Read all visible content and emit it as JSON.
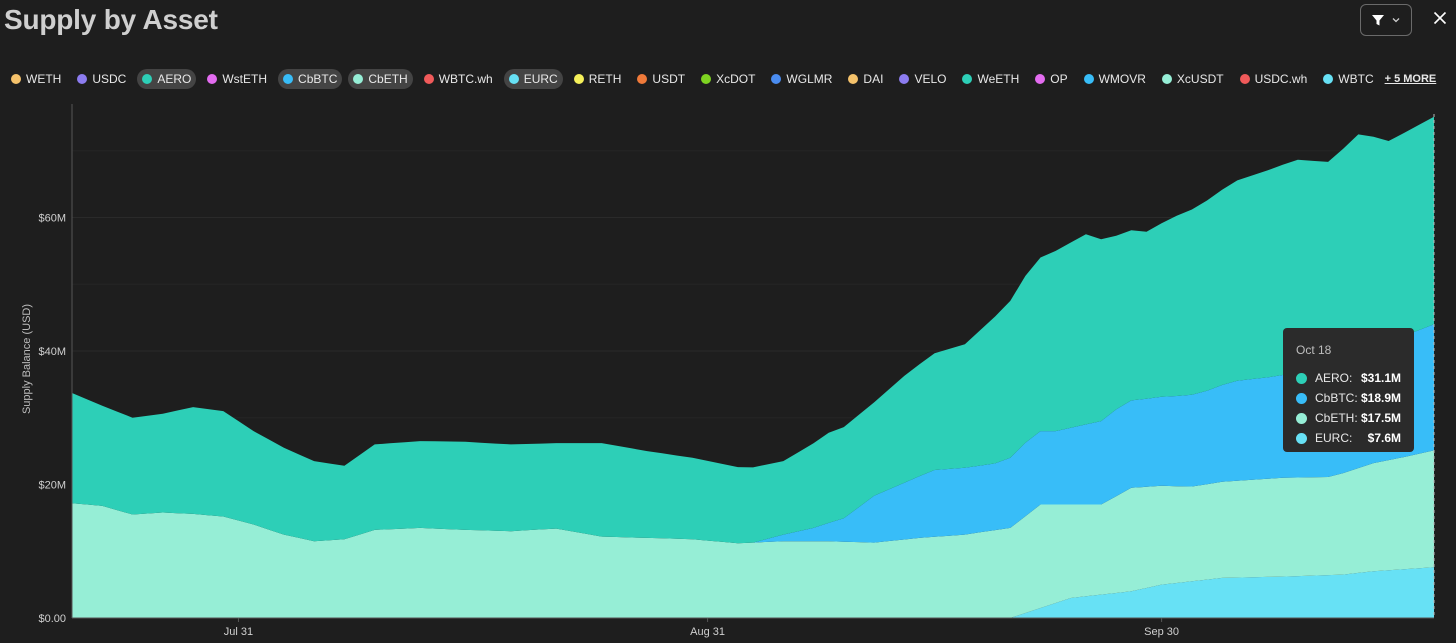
{
  "header": {
    "title": "Supply by Asset",
    "filter_icon": "filter-icon",
    "chevron_icon": "chevron-down-icon",
    "close_icon": "close-icon"
  },
  "legend": {
    "items": [
      {
        "label": "WETH",
        "color": "#f5c26b",
        "active": false
      },
      {
        "label": "USDC",
        "color": "#8c7cf0",
        "active": false
      },
      {
        "label": "AERO",
        "color": "#2dcfb7",
        "active": true
      },
      {
        "label": "WstETH",
        "color": "#e36cf0",
        "active": false
      },
      {
        "label": "CbBTC",
        "color": "#38bdf8",
        "active": true
      },
      {
        "label": "CbETH",
        "color": "#96eed6",
        "active": true
      },
      {
        "label": "WBTC.wh",
        "color": "#f05a5a",
        "active": false
      },
      {
        "label": "EURC",
        "color": "#67e1f5",
        "active": true
      },
      {
        "label": "RETH",
        "color": "#f5f05a",
        "active": false
      },
      {
        "label": "USDT",
        "color": "#f07a3a",
        "active": false
      },
      {
        "label": "XcDOT",
        "color": "#7ed321",
        "active": false
      },
      {
        "label": "WGLMR",
        "color": "#4a8cf0",
        "active": false
      },
      {
        "label": "DAI",
        "color": "#f5c26b",
        "active": false
      },
      {
        "label": "VELO",
        "color": "#8c7cf0",
        "active": false
      },
      {
        "label": "WeETH",
        "color": "#2dcfb7",
        "active": false
      },
      {
        "label": "OP",
        "color": "#e36cf0",
        "active": false
      },
      {
        "label": "WMOVR",
        "color": "#38bdf8",
        "active": false
      },
      {
        "label": "XcUSDT",
        "color": "#96eed6",
        "active": false
      },
      {
        "label": "USDC.wh",
        "color": "#f05a5a",
        "active": false
      },
      {
        "label": "WBTC",
        "color": "#67e1f5",
        "active": false
      }
    ],
    "more_label": "+ 5 MORE"
  },
  "tooltip": {
    "date": "Oct 18",
    "rows": [
      {
        "label": "AERO:",
        "value": "$31.1M",
        "color": "#2dcfb7"
      },
      {
        "label": "CbBTC:",
        "value": "$18.9M",
        "color": "#38bdf8"
      },
      {
        "label": "CbETH:",
        "value": "$17.5M",
        "color": "#96eed6"
      },
      {
        "label": "EURC:",
        "value": "$7.6M",
        "color": "#67e1f5"
      }
    ]
  },
  "chart_data": {
    "type": "area",
    "stacked": true,
    "title": "Supply by Asset",
    "ylabel": "Supply Balance (USD)",
    "xlabel": "",
    "ylim": [
      0,
      77
    ],
    "y_ticks": [
      {
        "value": 0,
        "label": "$0.00"
      },
      {
        "value": 20,
        "label": "$20M"
      },
      {
        "value": 40,
        "label": "$40M"
      },
      {
        "value": 60,
        "label": "$60M"
      }
    ],
    "x_ticks": [
      {
        "date": "2024-07-31",
        "label": "Jul 31"
      },
      {
        "date": "2024-08-31",
        "label": "Aug 31"
      },
      {
        "date": "2024-09-30",
        "label": "Sep 30"
      }
    ],
    "x_start": "2024-07-20",
    "x_end": "2024-10-18",
    "series": [
      {
        "name": "EURC",
        "color": "#67e1f5",
        "points": [
          [
            "2024-07-20",
            0
          ],
          [
            "2024-09-20",
            0
          ],
          [
            "2024-09-22",
            1.5
          ],
          [
            "2024-09-24",
            3
          ],
          [
            "2024-09-26",
            3.5
          ],
          [
            "2024-09-28",
            4
          ],
          [
            "2024-09-30",
            5
          ],
          [
            "2024-10-02",
            5.5
          ],
          [
            "2024-10-04",
            6
          ],
          [
            "2024-10-08",
            6.2
          ],
          [
            "2024-10-12",
            6.5
          ],
          [
            "2024-10-14",
            7
          ],
          [
            "2024-10-18",
            7.6
          ]
        ]
      },
      {
        "name": "CbETH",
        "color": "#96eed6",
        "points": [
          [
            "2024-07-20",
            17.2
          ],
          [
            "2024-07-22",
            16.8
          ],
          [
            "2024-07-24",
            15.5
          ],
          [
            "2024-07-26",
            15.8
          ],
          [
            "2024-07-28",
            15.6
          ],
          [
            "2024-07-30",
            15.2
          ],
          [
            "2024-08-01",
            14
          ],
          [
            "2024-08-03",
            12.5
          ],
          [
            "2024-08-05",
            11.5
          ],
          [
            "2024-08-07",
            11.8
          ],
          [
            "2024-08-09",
            13.2
          ],
          [
            "2024-08-12",
            13.5
          ],
          [
            "2024-08-15",
            13.2
          ],
          [
            "2024-08-18",
            13
          ],
          [
            "2024-08-21",
            13.4
          ],
          [
            "2024-08-24",
            12.2
          ],
          [
            "2024-08-27",
            12
          ],
          [
            "2024-08-30",
            11.8
          ],
          [
            "2024-09-02",
            11.2
          ],
          [
            "2024-09-05",
            11.5
          ],
          [
            "2024-09-08",
            11.5
          ],
          [
            "2024-09-11",
            11.3
          ],
          [
            "2024-09-14",
            12
          ],
          [
            "2024-09-17",
            12.5
          ],
          [
            "2024-09-20",
            13.5
          ],
          [
            "2024-09-22",
            15.5
          ],
          [
            "2024-09-24",
            14
          ],
          [
            "2024-09-26",
            13.5
          ],
          [
            "2024-09-28",
            15.5
          ],
          [
            "2024-09-30",
            14.8
          ],
          [
            "2024-10-02",
            14.2
          ],
          [
            "2024-10-05",
            14.5
          ],
          [
            "2024-10-08",
            14.8
          ],
          [
            "2024-10-11",
            14.7
          ],
          [
            "2024-10-14",
            16.2
          ],
          [
            "2024-10-16",
            16.8
          ],
          [
            "2024-10-18",
            17.5
          ]
        ]
      },
      {
        "name": "CbBTC",
        "color": "#38bdf8",
        "points": [
          [
            "2024-07-20",
            0
          ],
          [
            "2024-09-03",
            0
          ],
          [
            "2024-09-05",
            1
          ],
          [
            "2024-09-07",
            2
          ],
          [
            "2024-09-09",
            3.5
          ],
          [
            "2024-09-11",
            7
          ],
          [
            "2024-09-13",
            8.5
          ],
          [
            "2024-09-15",
            10
          ],
          [
            "2024-09-17",
            10
          ],
          [
            "2024-09-19",
            10
          ],
          [
            "2024-09-21",
            11
          ],
          [
            "2024-09-23",
            11
          ],
          [
            "2024-09-25",
            12
          ],
          [
            "2024-09-27",
            13
          ],
          [
            "2024-09-29",
            13.2
          ],
          [
            "2024-10-01",
            13.5
          ],
          [
            "2024-10-03",
            14
          ],
          [
            "2024-10-05",
            15
          ],
          [
            "2024-10-07",
            15.2
          ],
          [
            "2024-10-09",
            15.6
          ],
          [
            "2024-10-11",
            16.2
          ],
          [
            "2024-10-13",
            17
          ],
          [
            "2024-10-15",
            17.8
          ],
          [
            "2024-10-18",
            18.9
          ]
        ]
      },
      {
        "name": "AERO",
        "color": "#2dcfb7",
        "points": [
          [
            "2024-07-20",
            16.5
          ],
          [
            "2024-07-22",
            15
          ],
          [
            "2024-07-24",
            14.5
          ],
          [
            "2024-07-26",
            14.8
          ],
          [
            "2024-07-28",
            16
          ],
          [
            "2024-07-30",
            15.8
          ],
          [
            "2024-08-01",
            14
          ],
          [
            "2024-08-03",
            13
          ],
          [
            "2024-08-05",
            12
          ],
          [
            "2024-08-07",
            11
          ],
          [
            "2024-08-09",
            12.8
          ],
          [
            "2024-08-12",
            13
          ],
          [
            "2024-08-15",
            13.2
          ],
          [
            "2024-08-18",
            13
          ],
          [
            "2024-08-21",
            12.8
          ],
          [
            "2024-08-24",
            14
          ],
          [
            "2024-08-27",
            13
          ],
          [
            "2024-08-30",
            12.2
          ],
          [
            "2024-09-02",
            11.4
          ],
          [
            "2024-09-05",
            11
          ],
          [
            "2024-09-08",
            13.5
          ],
          [
            "2024-09-11",
            14
          ],
          [
            "2024-09-13",
            16
          ],
          [
            "2024-09-15",
            17.5
          ],
          [
            "2024-09-17",
            18.5
          ],
          [
            "2024-09-19",
            22
          ],
          [
            "2024-09-21",
            25
          ],
          [
            "2024-09-23",
            27
          ],
          [
            "2024-09-25",
            28.5
          ],
          [
            "2024-09-27",
            26
          ],
          [
            "2024-09-29",
            25
          ],
          [
            "2024-10-01",
            27
          ],
          [
            "2024-10-03",
            28.5
          ],
          [
            "2024-10-05",
            30
          ],
          [
            "2024-10-07",
            31
          ],
          [
            "2024-10-09",
            32
          ],
          [
            "2024-10-11",
            31
          ],
          [
            "2024-10-13",
            33
          ],
          [
            "2024-10-15",
            30
          ],
          [
            "2024-10-18",
            31.1
          ]
        ]
      }
    ]
  }
}
